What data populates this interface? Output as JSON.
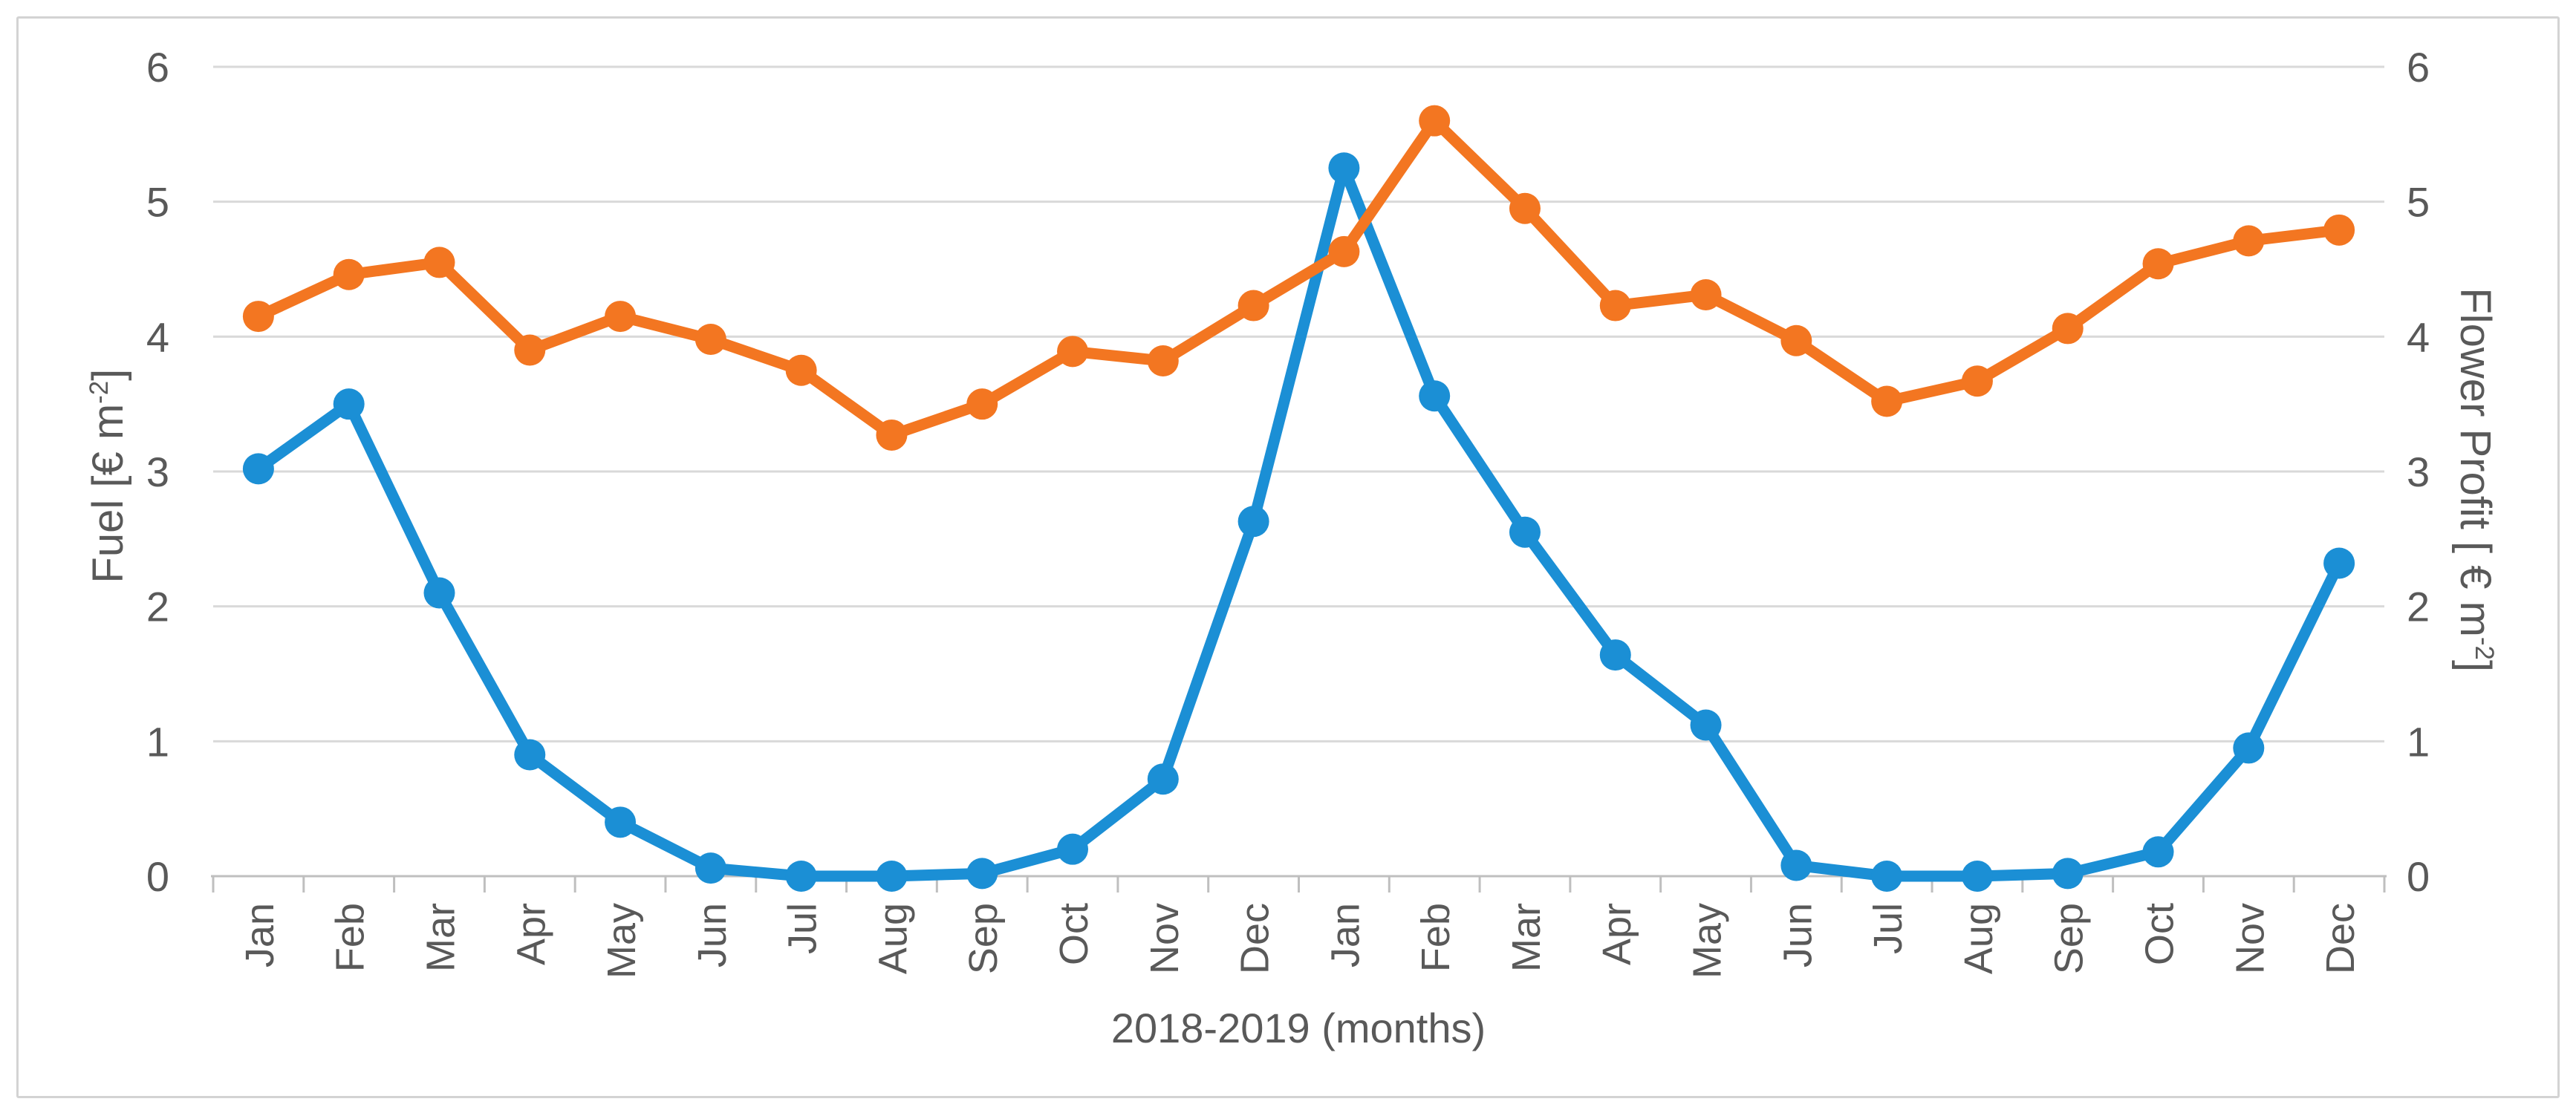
{
  "figure": {
    "background": "#ffffff",
    "frame_color": "#d3d3d3"
  },
  "chart_data": {
    "type": "line",
    "title": "",
    "legend": "none",
    "grid": true,
    "x_axis": {
      "title": "2018-2019 (months)",
      "categories": [
        "Jan",
        "Feb",
        "Mar",
        "Apr",
        "May",
        "Jun",
        "Jul",
        "Aug",
        "Sep",
        "Oct",
        "Nov",
        "Dec",
        "Jan",
        "Feb",
        "Mar",
        "Apr",
        "May",
        "Jun",
        "Jul",
        "Aug",
        "Sep",
        "Oct",
        "Nov",
        "Dec"
      ]
    },
    "y_axis_left": {
      "title_prefix": "Fuel [€ m",
      "title_sup": "-2",
      "title_suffix": "]",
      "min": 0,
      "max": 6,
      "ticks": [
        0,
        1,
        2,
        3,
        4,
        5,
        6
      ]
    },
    "y_axis_right": {
      "title_prefix": "Flower Profit [ € m",
      "title_sup": "-2",
      "title_suffix": "]",
      "min": 0,
      "max": 6,
      "ticks": [
        0,
        1,
        2,
        3,
        4,
        5,
        6
      ]
    },
    "styles": {
      "gridline_color": "#d9d9d9",
      "axis_color": "#bfbfbf",
      "text_color": "#595959"
    },
    "series": [
      {
        "name": "Fuel",
        "axis": "left",
        "color": "#1b8fd5",
        "values": [
          3.02,
          3.5,
          2.1,
          0.9,
          0.4,
          0.06,
          0.0,
          0.0,
          0.02,
          0.2,
          0.72,
          2.63,
          5.25,
          3.56,
          2.55,
          1.64,
          1.12,
          0.08,
          0.0,
          0.0,
          0.02,
          0.18,
          0.95,
          2.32
        ]
      },
      {
        "name": "Flower Profit",
        "axis": "right",
        "color": "#f37621",
        "values": [
          4.15,
          4.46,
          4.55,
          3.9,
          4.15,
          3.98,
          3.75,
          3.27,
          3.5,
          3.89,
          3.82,
          4.23,
          4.63,
          5.6,
          4.95,
          4.23,
          4.31,
          3.97,
          3.52,
          3.67,
          4.06,
          4.54,
          4.71,
          4.79
        ]
      }
    ]
  }
}
